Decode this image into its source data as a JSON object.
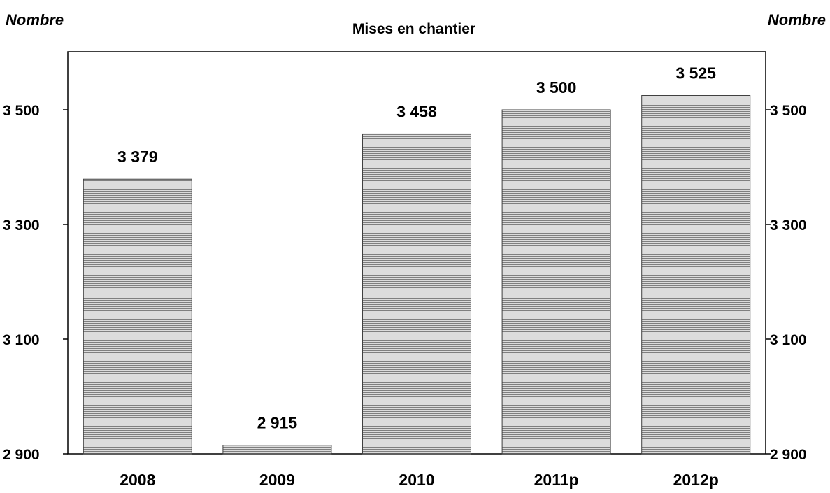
{
  "chart_data": {
    "type": "bar",
    "title": "Mises en chantier",
    "left_unit_label": "Nombre",
    "right_unit_label": "Nombre",
    "categories": [
      "2008",
      "2009",
      "2010",
      "2011p",
      "2012p"
    ],
    "values": [
      3379,
      2915,
      3458,
      3500,
      3525
    ],
    "value_labels": [
      "3 379",
      "2 915",
      "3 458",
      "3 500",
      "3 525"
    ],
    "ylim": [
      2900,
      3600
    ],
    "yticks": [
      2900,
      3100,
      3300,
      3500
    ],
    "ytick_labels": [
      "2 900",
      "3 100",
      "3 300",
      "3 500"
    ],
    "right_yticks": [
      2900,
      3100,
      3300,
      3500
    ],
    "right_ytick_labels": [
      "2 900",
      "3 100",
      "3 300",
      "3 500"
    ],
    "bar_fill": "#d9d9d9",
    "bar_hatch_color": "#808080",
    "bar_stroke": "#404040",
    "axis_color": "#000000",
    "grid": false,
    "legend": false
  }
}
